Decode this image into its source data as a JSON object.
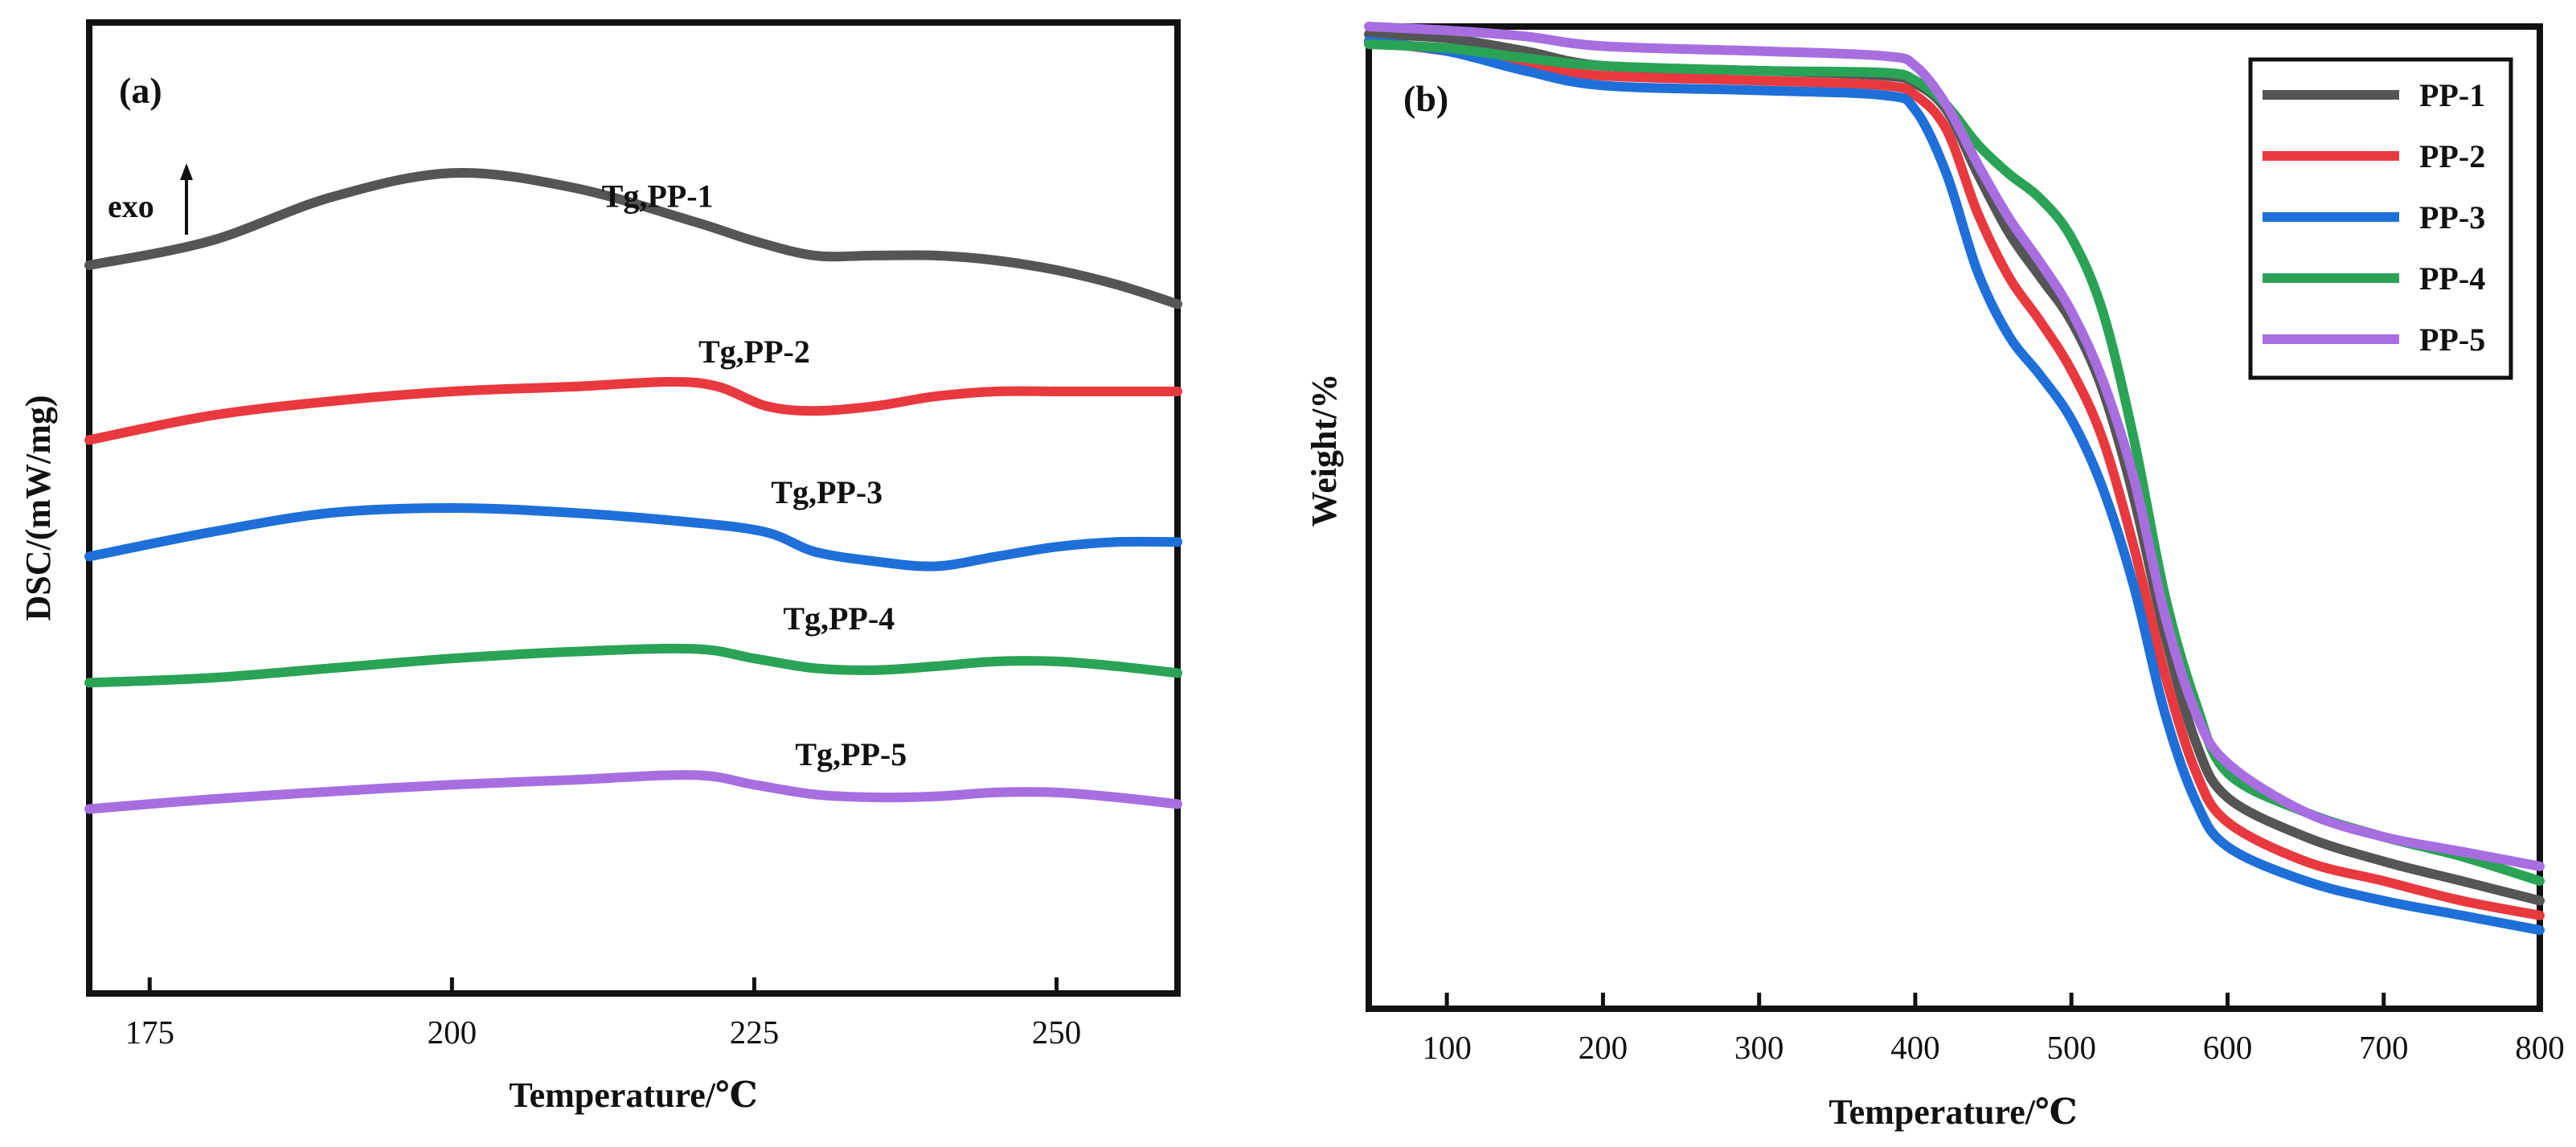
{
  "chart_data": [
    {
      "type": "line",
      "panel_label": "(a)",
      "title": "",
      "xlabel": "Temperature/℃",
      "ylabel": "DSC/(mW/mg)",
      "xlim": [
        170,
        260
      ],
      "ylim": [
        0,
        10
      ],
      "x_ticks": [
        175,
        200,
        225,
        250
      ],
      "x_tick_labels": [
        "175",
        "200",
        "225",
        "250"
      ],
      "exo_label": "exo",
      "grid": false,
      "series": [
        {
          "name": "PP-1",
          "color": "#555555",
          "annotation": "Tg,PP-1",
          "annotation_at": [
            217,
            8.1
          ],
          "x": [
            170,
            180,
            190,
            200,
            210,
            220,
            225,
            230,
            235,
            240,
            245,
            250,
            255,
            260
          ],
          "y": [
            7.5,
            7.75,
            8.2,
            8.45,
            8.3,
            7.95,
            7.75,
            7.6,
            7.6,
            7.6,
            7.55,
            7.45,
            7.3,
            7.1
          ]
        },
        {
          "name": "PP-2",
          "color": "#e8393f",
          "annotation": "Tg,PP-2",
          "annotation_at": [
            225,
            6.5
          ],
          "x": [
            170,
            180,
            190,
            200,
            210,
            218,
            222,
            226,
            230,
            235,
            240,
            245,
            250,
            255,
            260
          ],
          "y": [
            5.7,
            5.95,
            6.1,
            6.2,
            6.25,
            6.3,
            6.25,
            6.05,
            6.0,
            6.05,
            6.15,
            6.2,
            6.2,
            6.2,
            6.2
          ]
        },
        {
          "name": "PP-3",
          "color": "#1f6fd9",
          "annotation": "Tg,PP-3",
          "annotation_at": [
            231,
            5.05
          ],
          "x": [
            170,
            180,
            190,
            200,
            210,
            220,
            226,
            230,
            235,
            240,
            245,
            250,
            255,
            260
          ],
          "y": [
            4.5,
            4.75,
            4.95,
            5.0,
            4.95,
            4.85,
            4.75,
            4.55,
            4.45,
            4.4,
            4.5,
            4.6,
            4.65,
            4.65
          ]
        },
        {
          "name": "PP-4",
          "color": "#2aa356",
          "annotation": "Tg,PP-4",
          "annotation_at": [
            232,
            3.75
          ],
          "x": [
            170,
            180,
            190,
            200,
            210,
            220,
            225,
            230,
            235,
            240,
            245,
            250,
            255,
            260
          ],
          "y": [
            3.2,
            3.25,
            3.35,
            3.45,
            3.52,
            3.55,
            3.45,
            3.35,
            3.33,
            3.37,
            3.42,
            3.42,
            3.37,
            3.3
          ]
        },
        {
          "name": "PP-5",
          "color": "#a86ee0",
          "annotation": "Tg,PP-5",
          "annotation_at": [
            233,
            2.35
          ],
          "x": [
            170,
            180,
            190,
            200,
            210,
            220,
            225,
            230,
            235,
            240,
            245,
            250,
            255,
            260
          ],
          "y": [
            1.9,
            2.0,
            2.08,
            2.15,
            2.2,
            2.25,
            2.15,
            2.05,
            2.02,
            2.03,
            2.07,
            2.07,
            2.02,
            1.95
          ]
        }
      ]
    },
    {
      "type": "line",
      "panel_label": "(b)",
      "title": "",
      "xlabel": "Temperature/℃",
      "ylabel": "Weight/%",
      "xlim": [
        50,
        800
      ],
      "ylim": [
        0,
        100
      ],
      "x_ticks": [
        100,
        200,
        300,
        400,
        500,
        600,
        700,
        800
      ],
      "x_tick_labels": [
        "100",
        "200",
        "300",
        "400",
        "500",
        "600",
        "700",
        "800"
      ],
      "legend_position": "top-right",
      "grid": false,
      "series": [
        {
          "name": "PP-1",
          "color": "#555555",
          "x": [
            50,
            100,
            150,
            200,
            300,
            380,
            400,
            420,
            440,
            460,
            480,
            500,
            520,
            540,
            560,
            580,
            600,
            650,
            700,
            750,
            800
          ],
          "y": [
            99.2,
            98.8,
            97.5,
            96,
            95.5,
            95,
            94.2,
            91.5,
            85,
            79,
            74.5,
            70,
            63,
            52,
            38,
            27,
            21.5,
            17.5,
            15,
            13,
            11
          ]
        },
        {
          "name": "PP-2",
          "color": "#e8393f",
          "x": [
            50,
            100,
            150,
            200,
            300,
            380,
            400,
            420,
            440,
            460,
            480,
            500,
            520,
            540,
            560,
            580,
            600,
            650,
            700,
            750,
            800
          ],
          "y": [
            98.5,
            97.5,
            96,
            95,
            94.5,
            94,
            93,
            89.5,
            81,
            74.5,
            70,
            65,
            58,
            47,
            34,
            24,
            19,
            15,
            13,
            11,
            9.5
          ]
        },
        {
          "name": "PP-3",
          "color": "#1f6fd9",
          "x": [
            50,
            100,
            150,
            200,
            300,
            380,
            400,
            420,
            440,
            460,
            480,
            500,
            520,
            540,
            560,
            580,
            600,
            650,
            700,
            750,
            800
          ],
          "y": [
            98.5,
            97.5,
            95.5,
            94,
            93.5,
            93,
            91.5,
            85,
            75,
            68.5,
            64.5,
            60,
            53,
            43,
            30,
            21,
            16.5,
            13,
            11,
            9.5,
            8
          ]
        },
        {
          "name": "PP-4",
          "color": "#2aa356",
          "x": [
            50,
            100,
            150,
            200,
            300,
            380,
            400,
            420,
            440,
            460,
            480,
            500,
            520,
            540,
            560,
            580,
            600,
            650,
            700,
            750,
            800
          ],
          "y": [
            98.2,
            97.8,
            96.8,
            96,
            95.5,
            95.3,
            94.5,
            92,
            88,
            85,
            82.5,
            78.5,
            71,
            58,
            42,
            31,
            24,
            20,
            17.5,
            15.5,
            13
          ]
        },
        {
          "name": "PP-5",
          "color": "#a86ee0",
          "x": [
            50,
            100,
            150,
            200,
            300,
            380,
            400,
            420,
            440,
            460,
            480,
            500,
            520,
            540,
            560,
            580,
            600,
            650,
            700,
            750,
            800
          ],
          "y": [
            100,
            99.6,
            99,
            98,
            97.5,
            97,
            96,
            92,
            86,
            80.5,
            76,
            71,
            64,
            54,
            40,
            30,
            25,
            20,
            17.5,
            16,
            14.5
          ]
        }
      ]
    }
  ]
}
